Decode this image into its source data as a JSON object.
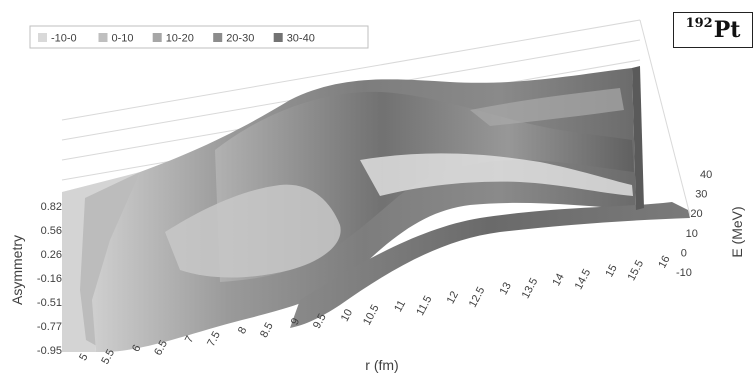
{
  "chart_data": {
    "type": "surface",
    "legend": {
      "placement": "top-left",
      "entries": [
        {
          "label": "-10-0",
          "color": "#d9d9d9"
        },
        {
          "label": "0-10",
          "color": "#bfbfbf"
        },
        {
          "label": "10-20",
          "color": "#a6a6a6"
        },
        {
          "label": "20-30",
          "color": "#8c8c8c"
        },
        {
          "label": "30-40",
          "color": "#737373"
        }
      ]
    },
    "x_axis": {
      "title": "r (fm)",
      "ticks": [
        "5",
        "5.5",
        "6",
        "6.5",
        "7",
        "7.5",
        "8",
        "8.5",
        "9",
        "9.5",
        "10",
        "10.5",
        "11",
        "11.5",
        "12",
        "12.5",
        "13",
        "13.5",
        "14",
        "14.5",
        "15",
        "15.5",
        "16"
      ]
    },
    "y_axis": {
      "title": "Asymmetry",
      "ticks": [
        "0.82",
        "0.56",
        "0.26",
        "-0.16",
        "-0.51",
        "-0.77",
        "-0.95"
      ]
    },
    "z_axis": {
      "title": "E (MeV)",
      "ticks": [
        "-10",
        "0",
        "10",
        "20",
        "30",
        "40"
      ],
      "range": [
        -10,
        40
      ]
    }
  },
  "annotation": {
    "mass_number": "192",
    "element": "Pt"
  }
}
